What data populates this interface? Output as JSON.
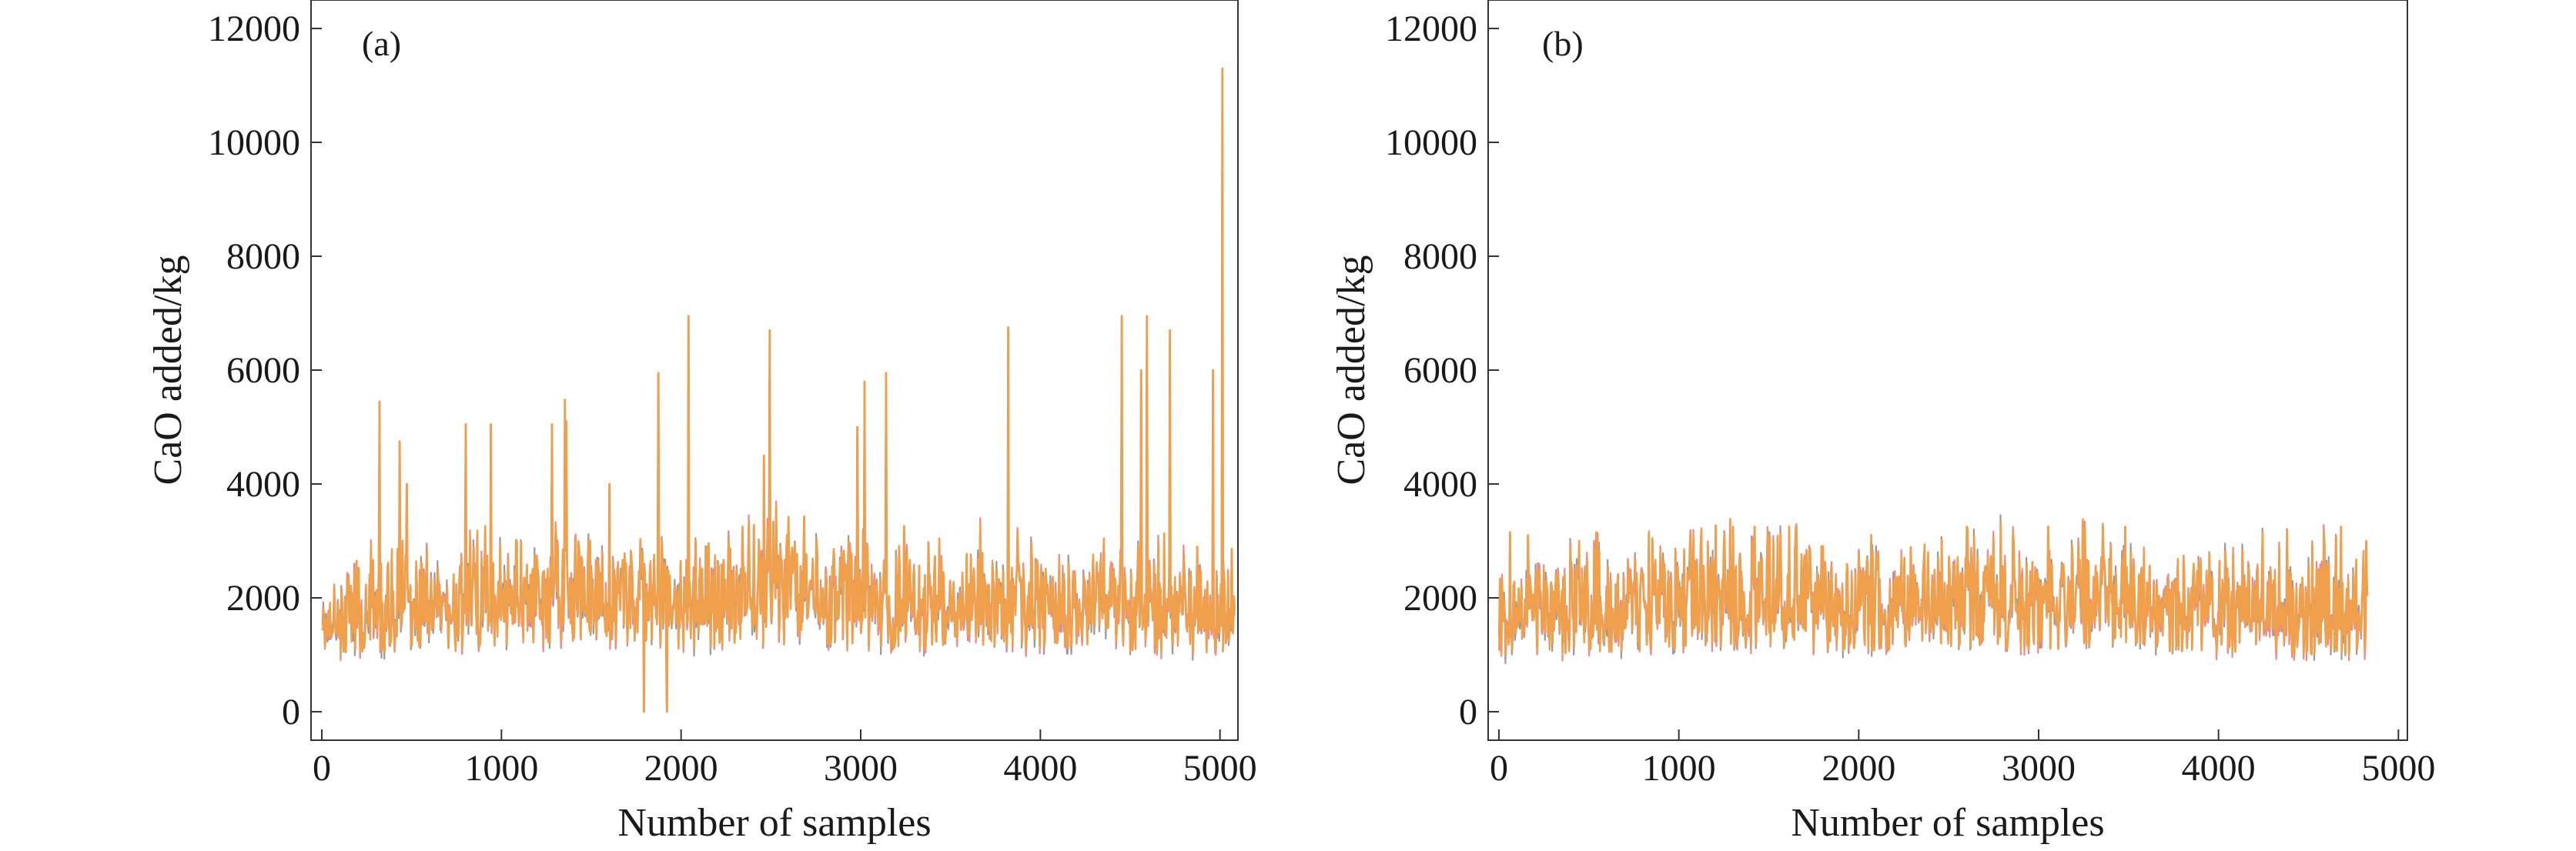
{
  "colors": {
    "series_gray": "#9a9a9a",
    "series_pink": "#ee8a84",
    "series_orange": "#f0a04a",
    "frame": "#333333",
    "background": "#ffffff"
  },
  "chart_data": [
    {
      "type": "line",
      "panel_label": "(a)",
      "xlabel": "Number of samples",
      "ylabel": "CaO added/kg",
      "xlim": [
        -60,
        5100
      ],
      "ylim": [
        -500,
        12500
      ],
      "xticks": [
        0,
        1000,
        2000,
        3000,
        4000,
        5000
      ],
      "yticks": [
        0,
        2000,
        4000,
        6000,
        8000,
        10000,
        12000
      ],
      "n_samples": 5080,
      "band": [
        [
          0,
          1000,
          2600
        ],
        [
          250,
          1050,
          2900
        ],
        [
          500,
          1050,
          3000
        ],
        [
          750,
          1100,
          3050
        ],
        [
          1000,
          1150,
          3100
        ],
        [
          1250,
          1200,
          3200
        ],
        [
          1500,
          1250,
          3300
        ],
        [
          1750,
          1200,
          3200
        ],
        [
          2000,
          1100,
          3100
        ],
        [
          2250,
          1150,
          3200
        ],
        [
          2500,
          1200,
          3400
        ],
        [
          2750,
          1200,
          3300
        ],
        [
          3000,
          1150,
          3300
        ],
        [
          3250,
          1100,
          3200
        ],
        [
          3500,
          1150,
          3200
        ],
        [
          3750,
          1150,
          3100
        ],
        [
          4000,
          1100,
          3100
        ],
        [
          4250,
          1100,
          3100
        ],
        [
          4500,
          1050,
          3000
        ],
        [
          4750,
          1050,
          3000
        ],
        [
          5080,
          1000,
          2900
        ]
      ],
      "spikes": [
        [
          320,
          5450
        ],
        [
          430,
          4750
        ],
        [
          470,
          4000
        ],
        [
          800,
          5050
        ],
        [
          940,
          5050
        ],
        [
          1280,
          5050
        ],
        [
          1350,
          5480
        ],
        [
          1360,
          5100
        ],
        [
          1600,
          4000
        ],
        [
          1790,
          0
        ],
        [
          1870,
          5950
        ],
        [
          1920,
          0
        ],
        [
          2040,
          6950
        ],
        [
          2460,
          4500
        ],
        [
          2490,
          6700
        ],
        [
          2980,
          5000
        ],
        [
          3020,
          5800
        ],
        [
          3140,
          5950
        ],
        [
          3820,
          6750
        ],
        [
          4450,
          6950
        ],
        [
          4560,
          6000
        ],
        [
          4590,
          6950
        ],
        [
          4720,
          6700
        ],
        [
          4960,
          6000
        ],
        [
          5010,
          11300
        ]
      ]
    },
    {
      "type": "line",
      "panel_label": "(b)",
      "xlabel": "Number of samples",
      "ylabel": "CaO added/kg",
      "xlim": [
        -60,
        5050
      ],
      "ylim": [
        -500,
        12500
      ],
      "xticks": [
        0,
        1000,
        2000,
        3000,
        4000,
        5000
      ],
      "yticks": [
        0,
        2000,
        4000,
        6000,
        8000,
        10000,
        12000
      ],
      "n_samples": 4830,
      "band": [
        [
          0,
          950,
          2700
        ],
        [
          250,
          1000,
          2900
        ],
        [
          500,
          1050,
          3000
        ],
        [
          750,
          1050,
          3050
        ],
        [
          1000,
          1100,
          3100
        ],
        [
          1250,
          1150,
          3200
        ],
        [
          1500,
          1150,
          3200
        ],
        [
          1750,
          1100,
          3150
        ],
        [
          2000,
          1050,
          3100
        ],
        [
          2250,
          1100,
          3150
        ],
        [
          2500,
          1150,
          3200
        ],
        [
          2750,
          1100,
          3150
        ],
        [
          3000,
          1100,
          3150
        ],
        [
          3250,
          1100,
          3200
        ],
        [
          3500,
          1100,
          3150
        ],
        [
          3750,
          1050,
          3100
        ],
        [
          4000,
          1050,
          3100
        ],
        [
          4250,
          1050,
          3100
        ],
        [
          4500,
          1000,
          3050
        ],
        [
          4830,
          1000,
          2950
        ]
      ],
      "spikes": [
        [
          60,
          3150
        ],
        [
          160,
          3100
        ],
        [
          540,
          3150
        ],
        [
          1300,
          3250
        ],
        [
          1420,
          3250
        ],
        [
          1610,
          3250
        ],
        [
          2600,
          3250
        ],
        [
          3050,
          3250
        ],
        [
          3480,
          3250
        ],
        [
          4680,
          3250
        ],
        [
          4820,
          3000
        ]
      ]
    }
  ]
}
